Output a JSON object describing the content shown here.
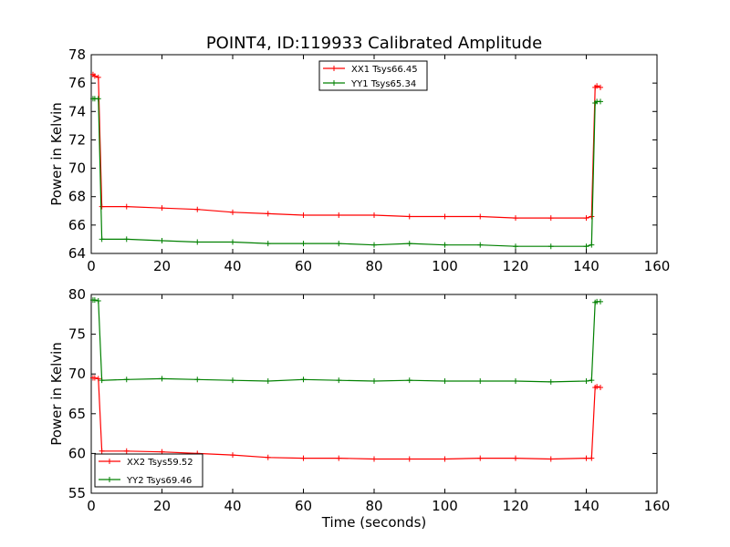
{
  "figure": {
    "title": "POINT4, ID:119933 Calibrated Amplitude"
  },
  "chart_data": [
    {
      "type": "line",
      "title": "POINT4, ID:119933 Calibrated Amplitude",
      "xlabel": "",
      "ylabel": "Power in Kelvin",
      "xlim": [
        0,
        160
      ],
      "ylim": [
        64,
        78
      ],
      "xticks": [
        0,
        20,
        40,
        60,
        80,
        100,
        120,
        140,
        160
      ],
      "yticks": [
        64,
        66,
        68,
        70,
        72,
        74,
        76,
        78
      ],
      "legend_position": "top-center",
      "grid": false,
      "series": [
        {
          "name": "XX1 Tsys66.45",
          "color": "#ff0000",
          "x": [
            0.5,
            1,
            2,
            3,
            10,
            20,
            30,
            40,
            50,
            60,
            70,
            80,
            90,
            100,
            110,
            120,
            130,
            140,
            141.5,
            142.5,
            143,
            144
          ],
          "values": [
            76.6,
            76.5,
            76.4,
            67.3,
            67.3,
            67.2,
            67.1,
            66.9,
            66.8,
            66.7,
            66.7,
            66.7,
            66.6,
            66.6,
            66.6,
            66.5,
            66.5,
            66.5,
            66.6,
            75.7,
            75.8,
            75.7
          ]
        },
        {
          "name": "YY1 Tsys65.34",
          "color": "#008000",
          "x": [
            0.5,
            1,
            2,
            3,
            10,
            20,
            30,
            40,
            50,
            60,
            70,
            80,
            90,
            100,
            110,
            120,
            130,
            140,
            141.5,
            142.5,
            143,
            144
          ],
          "values": [
            74.9,
            74.9,
            74.9,
            65.0,
            65.0,
            64.9,
            64.8,
            64.8,
            64.7,
            64.7,
            64.7,
            64.6,
            64.7,
            64.6,
            64.6,
            64.5,
            64.5,
            64.5,
            64.6,
            74.6,
            74.7,
            74.7
          ]
        }
      ]
    },
    {
      "type": "line",
      "title": "",
      "xlabel": "Time (seconds)",
      "ylabel": "Power in Kelvin",
      "xlim": [
        0,
        160
      ],
      "ylim": [
        55,
        80
      ],
      "xticks": [
        0,
        20,
        40,
        60,
        80,
        100,
        120,
        140,
        160
      ],
      "yticks": [
        55,
        60,
        65,
        70,
        75,
        80
      ],
      "legend_position": "lower-left",
      "grid": false,
      "series": [
        {
          "name": "XX2 Tsys59.52",
          "color": "#ff0000",
          "x": [
            0.5,
            1,
            2,
            3,
            10,
            20,
            30,
            40,
            50,
            60,
            70,
            80,
            90,
            100,
            110,
            120,
            130,
            140,
            141.5,
            142.5,
            143,
            144
          ],
          "values": [
            69.5,
            69.5,
            69.4,
            60.3,
            60.3,
            60.2,
            60.0,
            59.8,
            59.5,
            59.4,
            59.4,
            59.3,
            59.3,
            59.3,
            59.4,
            59.4,
            59.3,
            59.4,
            59.4,
            68.3,
            68.4,
            68.3
          ]
        },
        {
          "name": "YY2 Tsys69.46",
          "color": "#008000",
          "x": [
            0.5,
            1,
            2,
            3,
            10,
            20,
            30,
            40,
            50,
            60,
            70,
            80,
            90,
            100,
            110,
            120,
            130,
            140,
            141.5,
            142.5,
            143,
            144
          ],
          "values": [
            79.3,
            79.3,
            79.2,
            69.2,
            69.3,
            69.4,
            69.3,
            69.2,
            69.1,
            69.3,
            69.2,
            69.1,
            69.2,
            69.1,
            69.1,
            69.1,
            69.0,
            69.1,
            69.2,
            79.0,
            79.1,
            79.1
          ]
        }
      ]
    }
  ]
}
